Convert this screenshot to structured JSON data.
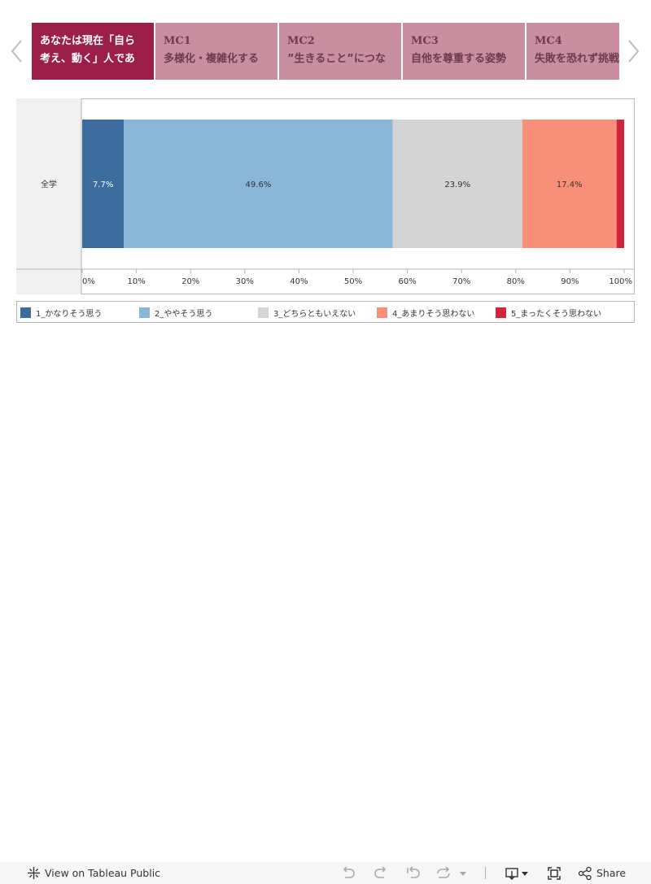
{
  "story": {
    "tabs": [
      {
        "line1": "あなたは現在「自ら",
        "line2": "考え、動く」人であ",
        "active": true
      },
      {
        "line1": "MC1",
        "line2": "多様化・複雑化する",
        "active": false
      },
      {
        "line1": "MC2",
        "line2": "”生きること”につな",
        "active": false
      },
      {
        "line1": "MC3",
        "line2": "自他を尊重する姿勢",
        "active": false
      },
      {
        "line1": "MC4",
        "line2": "失敗を恐れず挑戦",
        "active": false
      }
    ]
  },
  "chart_data": {
    "type": "bar",
    "orientation": "horizontal-stacked",
    "categories": [
      "全学"
    ],
    "series": [
      {
        "name": "1_かなりそう思う",
        "values": [
          7.7
        ],
        "label": "7.7%",
        "color": "#3d6d9e"
      },
      {
        "name": "2_ややそう思う",
        "values": [
          49.6
        ],
        "label": "49.6%",
        "color": "#8ab6d8"
      },
      {
        "name": "3_どちらともいえない",
        "values": [
          23.9
        ],
        "label": "23.9%",
        "color": "#d4d4d4"
      },
      {
        "name": "4_あまりそう思わない",
        "values": [
          17.4
        ],
        "label": "17.4%",
        "color": "#f88f79"
      },
      {
        "name": "5_まったくそう思わない",
        "values": [
          1.4
        ],
        "label": "",
        "color": "#d1253d"
      }
    ],
    "xlim": [
      0,
      100
    ],
    "xticks": [
      "0%",
      "10%",
      "20%",
      "30%",
      "40%",
      "50%",
      "60%",
      "70%",
      "80%",
      "90%",
      "100%"
    ],
    "legend": "bottom"
  },
  "toolbar": {
    "view_label": "View on Tableau Public",
    "share_label": "Share",
    "icons": [
      "tableau-logo-icon",
      "undo-icon",
      "redo-icon",
      "revert-icon",
      "refresh-icon",
      "download-icon",
      "fullscreen-icon",
      "share-icon"
    ]
  }
}
